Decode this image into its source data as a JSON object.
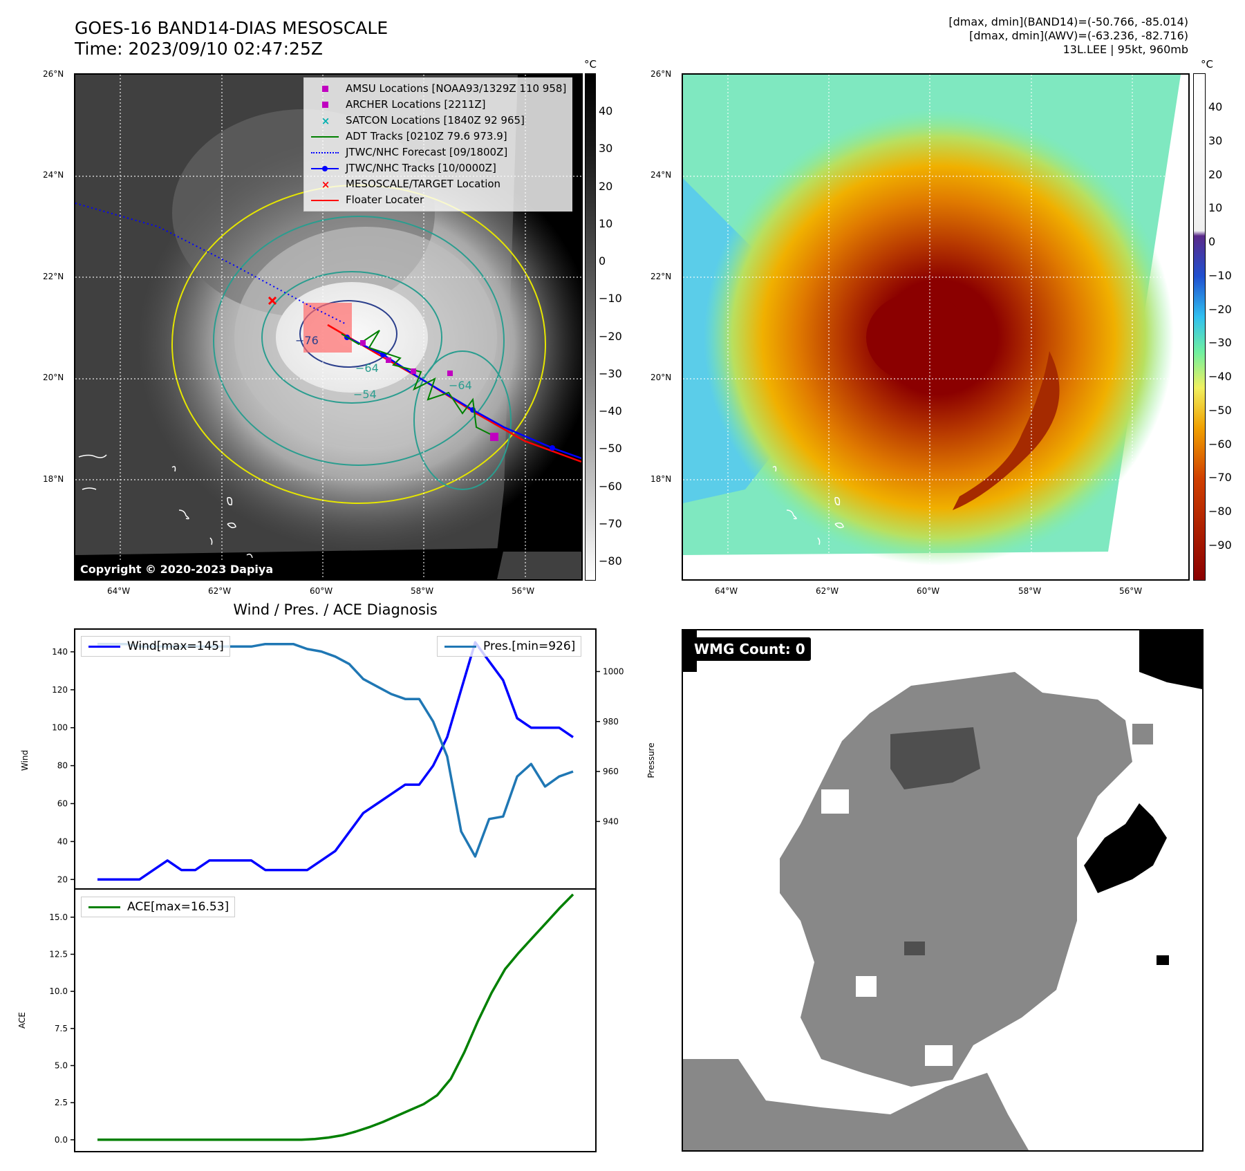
{
  "header": {
    "title_line1": "GOES-16 BAND14-DIAS MESOSCALE",
    "title_line2": "Time: 2023/09/10 02:47:25Z",
    "stats_line1": "[dmax, dmin](BAND14)=(-50.766, -85.014)",
    "stats_line2": "[dmax, dmin](AWV)=(-63.236, -82.716)",
    "stats_line3": "13L.LEE | 95kt, 960mb"
  },
  "map_axes": {
    "lat_labels": [
      "26°N",
      "24°N",
      "22°N",
      "20°N",
      "18°N"
    ],
    "lon_labels": [
      "64°W",
      "62°W",
      "60°W",
      "58°W",
      "56°W"
    ]
  },
  "ir_panel": {
    "colorbar_unit": "°C",
    "colorbar_ticks": [
      "40",
      "30",
      "20",
      "10",
      "0",
      "−10",
      "−20",
      "−30",
      "−40",
      "−50",
      "−60",
      "−70",
      "−80"
    ],
    "copyright": "Copyright © 2020-2023 Dapiya",
    "contour_labels": [
      "−54",
      "−64",
      "−64",
      "−76"
    ],
    "legend": [
      {
        "label": "AMSU Locations [NOAA93/1329Z 110 958]",
        "color": "#c000c0",
        "symbol": "square"
      },
      {
        "label": "ARCHER Locations [2211Z]",
        "color": "#c000c0",
        "symbol": "square"
      },
      {
        "label": "SATCON Locations [1840Z 92 965]",
        "color": "#00b0b0",
        "symbol": "x"
      },
      {
        "label": "ADT Tracks [0210Z 79.6 973.9]",
        "color": "#008000",
        "symbol": "line"
      },
      {
        "label": "JTWC/NHC Forecast [09/1800Z]",
        "color": "#0000ff",
        "symbol": "dotted"
      },
      {
        "label": "JTWC/NHC Tracks [10/0000Z]",
        "color": "#0000ff",
        "symbol": "line-dot"
      },
      {
        "label": "MESOSCALE/TARGET Location",
        "color": "#ff0000",
        "symbol": "x"
      },
      {
        "label": "Floater Locater",
        "color": "#ff0000",
        "symbol": "line"
      }
    ]
  },
  "awv_panel": {
    "colorbar_unit": "°C",
    "colorbar_ticks": [
      "40",
      "30",
      "20",
      "10",
      "0",
      "−10",
      "−20",
      "−30",
      "−40",
      "−50",
      "−60",
      "−70",
      "−80",
      "−90"
    ]
  },
  "diag_title": "Wind / Pres. / ACE Diagnosis",
  "wmg": {
    "label": "WMG Count: 0"
  },
  "chart_data": [
    {
      "type": "line",
      "title": "Wind / Pres. / ACE Diagnosis",
      "ylabel": "Wind",
      "y2label": "Pressure",
      "ylim": [
        15,
        152
      ],
      "y2lim": [
        913,
        1017
      ],
      "yticks": [
        20,
        40,
        60,
        80,
        100,
        120,
        140
      ],
      "y2ticks": [
        940,
        960,
        980,
        1000
      ],
      "series": [
        {
          "name": "Wind[max=145]",
          "color": "#0000ff",
          "values": [
            20,
            20,
            20,
            20,
            25,
            30,
            25,
            25,
            30,
            30,
            30,
            30,
            25,
            25,
            25,
            25,
            30,
            35,
            45,
            55,
            60,
            65,
            70,
            70,
            80,
            95,
            120,
            145,
            135,
            125,
            105,
            100,
            100,
            100,
            95
          ]
        },
        {
          "name": "Pres.[min=926]",
          "color": "#1f77b4",
          "values": [
            1011,
            1011,
            1011,
            1010,
            1010,
            1010,
            1010,
            1010,
            1010,
            1010,
            1010,
            1010,
            1011,
            1011,
            1011,
            1009,
            1008,
            1006,
            1003,
            997,
            994,
            991,
            989,
            989,
            980,
            966,
            936,
            926,
            941,
            942,
            958,
            963,
            954,
            958,
            960
          ]
        }
      ]
    },
    {
      "type": "line",
      "ylabel": "ACE",
      "ylim": [
        -0.8,
        16.9
      ],
      "yticks": [
        0.0,
        2.5,
        5.0,
        7.5,
        10.0,
        12.5,
        15.0
      ],
      "series": [
        {
          "name": "ACE[max=16.53]",
          "color": "#008000",
          "values": [
            0,
            0,
            0,
            0,
            0,
            0,
            0,
            0,
            0,
            0,
            0,
            0,
            0,
            0,
            0,
            0,
            0.05,
            0.15,
            0.3,
            0.55,
            0.85,
            1.2,
            1.6,
            2.0,
            2.4,
            3.0,
            4.1,
            5.9,
            8.0,
            9.9,
            11.5,
            12.6,
            13.6,
            14.6,
            15.6,
            16.53
          ]
        }
      ]
    }
  ]
}
